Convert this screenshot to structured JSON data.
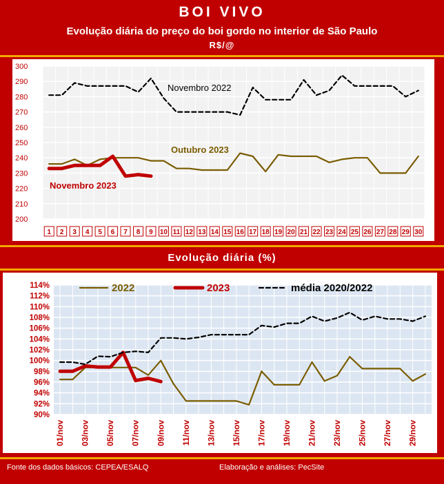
{
  "header": {
    "title": "BOI VIVO",
    "subtitle": "Evolução diária do preço do boi gordo no interior de São Paulo",
    "unit": "R$/@"
  },
  "section2_title": "Evolução diária (%)",
  "footer": {
    "source": "Fonte dos dados básicos: CEPEA/ESALQ",
    "credits": "Elaboração e análises: PecSite"
  },
  "colors": {
    "background": "#c00000",
    "stripe": "#f2a900",
    "nov2022": "#000000",
    "out2023": "#7a5c00",
    "nov2023": "#c00000",
    "plot_bg2": "#dce6f2"
  },
  "chart_data": [
    {
      "type": "line",
      "ylim": [
        200,
        300
      ],
      "yticks": [
        "300",
        "290",
        "280",
        "270",
        "260",
        "250",
        "240",
        "230",
        "220",
        "210",
        "200"
      ],
      "categories": [
        "1",
        "2",
        "3",
        "4",
        "5",
        "6",
        "7",
        "8",
        "9",
        "10",
        "11",
        "12",
        "13",
        "14",
        "15",
        "16",
        "17",
        "18",
        "19",
        "20",
        "21",
        "22",
        "23",
        "24",
        "25",
        "26",
        "27",
        "28",
        "29",
        "30"
      ],
      "grid": true,
      "series": [
        {
          "name": "Novembro 2022",
          "style": "dashed",
          "color": "#000000",
          "values": [
            281,
            281,
            289,
            287,
            287,
            287,
            287,
            283,
            292,
            279,
            270,
            270,
            270,
            270,
            270,
            268,
            286,
            278,
            278,
            278,
            291,
            281,
            284,
            294,
            287,
            287,
            287,
            287,
            280,
            284
          ]
        },
        {
          "name": "Outubro 2023",
          "style": "solid",
          "color": "#7a5c00",
          "values": [
            236,
            236,
            239,
            235,
            239,
            240,
            240,
            240,
            238,
            238,
            233,
            233,
            232,
            232,
            232,
            243,
            241,
            231,
            242,
            241,
            241,
            241,
            237,
            239,
            240,
            240,
            230,
            230,
            230,
            241
          ]
        },
        {
          "name": "Novembro 2023",
          "style": "thick",
          "color": "#c00000",
          "values": [
            233,
            233,
            235,
            235,
            235,
            241,
            228,
            229,
            228,
            null,
            null,
            null,
            null,
            null,
            null,
            null,
            null,
            null,
            null,
            null,
            null,
            null,
            null,
            null,
            null,
            null,
            null,
            null,
            null,
            null
          ]
        }
      ]
    },
    {
      "type": "line",
      "ylim": [
        90,
        114
      ],
      "yticks": [
        "114%",
        "112%",
        "110%",
        "108%",
        "106%",
        "104%",
        "102%",
        "100%",
        "98%",
        "96%",
        "94%",
        "92%",
        "90%"
      ],
      "x": [
        "01/nov",
        "02/nov",
        "03/nov",
        "04/nov",
        "05/nov",
        "06/nov",
        "07/nov",
        "08/nov",
        "09/nov",
        "10/nov",
        "11/nov",
        "12/nov",
        "13/nov",
        "14/nov",
        "15/nov",
        "16/nov",
        "17/nov",
        "18/nov",
        "19/nov",
        "20/nov",
        "21/nov",
        "22/nov",
        "23/nov",
        "24/nov",
        "25/nov",
        "26/nov",
        "27/nov",
        "28/nov",
        "29/nov",
        "30/nov"
      ],
      "xtick_labels": [
        "01/nov",
        "03/nov",
        "05/nov",
        "07/nov",
        "09/nov",
        "11/nov",
        "13/nov",
        "15/nov",
        "17/nov",
        "19/nov",
        "21/nov",
        "23/nov",
        "25/nov",
        "27/nov",
        "29/nov"
      ],
      "legend": "top",
      "series": [
        {
          "name": "2022",
          "style": "solid",
          "color": "#7a5c00",
          "values": [
            96.5,
            96.5,
            98.7,
            98.7,
            98.7,
            98.7,
            98.7,
            97.3,
            100.0,
            95.7,
            92.5,
            92.5,
            92.5,
            92.5,
            92.5,
            91.8,
            98.0,
            95.5,
            95.5,
            95.5,
            99.7,
            96.2,
            97.2,
            100.7,
            98.5,
            98.5,
            98.5,
            98.5,
            96.2,
            97.5
          ]
        },
        {
          "name": "2023",
          "style": "thick",
          "color": "#c00000",
          "values": [
            98.0,
            98.0,
            99.0,
            98.8,
            98.8,
            101.5,
            96.3,
            96.7,
            96.1,
            null,
            null,
            null,
            null,
            null,
            null,
            null,
            null,
            null,
            null,
            null,
            null,
            null,
            null,
            null,
            null,
            null,
            null,
            null,
            null,
            null
          ]
        },
        {
          "name": "média 2020/2022",
          "style": "dashed",
          "color": "#000000",
          "values": [
            99.7,
            99.7,
            99.3,
            100.8,
            100.7,
            101.5,
            101.7,
            101.5,
            104.2,
            104.2,
            104.0,
            104.3,
            104.8,
            104.8,
            104.8,
            104.8,
            106.5,
            106.2,
            106.9,
            106.9,
            108.2,
            107.3,
            107.9,
            108.9,
            107.5,
            108.2,
            107.7,
            107.7,
            107.3,
            108.2
          ]
        }
      ]
    }
  ]
}
